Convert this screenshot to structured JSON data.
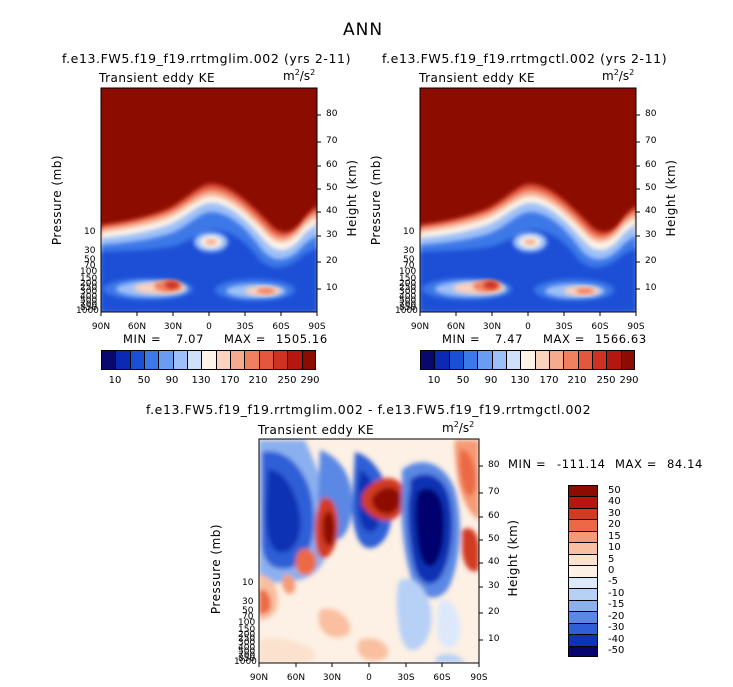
{
  "title": "ANN",
  "chart_data": [
    {
      "type": "heatmap",
      "run_title": "f.e13.FW5.f19_f19.rrtmglim.002 (yrs 2-11)",
      "variable_label": "Transient eddy KE",
      "units_base": "m",
      "units_exp1": "2",
      "units_mid": "/s",
      "units_exp2": "2",
      "x_ticks": [
        "90N",
        "60N",
        "30N",
        "0",
        "30S",
        "60S",
        "90S"
      ],
      "xlim": [
        90,
        -90
      ],
      "ylabel_left": "Pressure (mb)",
      "ylabel_right": "Height (km)",
      "pressure_ticks": [
        "10",
        "30",
        "50",
        "70",
        "100",
        "150",
        "200",
        "250",
        "300",
        "400",
        "500",
        "700",
        "850",
        "1000"
      ],
      "height_ticks": [
        "10",
        "20",
        "30",
        "40",
        "50",
        "60",
        "70",
        "80"
      ],
      "min_label": "MIN =",
      "min_value": "7.07",
      "max_label": "MAX =",
      "max_value": "1505.16",
      "levels": [
        10,
        30,
        50,
        70,
        90,
        110,
        130,
        150,
        170,
        190,
        210,
        230,
        250,
        270,
        290
      ],
      "colorbar_labels": [
        "10",
        "50",
        "90",
        "130",
        "170",
        "210",
        "250",
        "290"
      ]
    },
    {
      "type": "heatmap",
      "run_title": "f.e13.FW5.f19_f19.rrtmgctl.002 (yrs 2-11)",
      "variable_label": "Transient eddy KE",
      "units_base": "m",
      "units_exp1": "2",
      "units_mid": "/s",
      "units_exp2": "2",
      "x_ticks": [
        "90N",
        "60N",
        "30N",
        "0",
        "30S",
        "60S",
        "90S"
      ],
      "xlim": [
        90,
        -90
      ],
      "ylabel_left": "Pressure (mb)",
      "ylabel_right": "Height (km)",
      "pressure_ticks": [
        "10",
        "30",
        "50",
        "70",
        "100",
        "150",
        "200",
        "250",
        "300",
        "400",
        "500",
        "700",
        "850",
        "1000"
      ],
      "height_ticks": [
        "10",
        "20",
        "30",
        "40",
        "50",
        "60",
        "70",
        "80"
      ],
      "min_label": "MIN =",
      "min_value": "7.47",
      "max_label": "MAX =",
      "max_value": "1566.63",
      "levels": [
        10,
        30,
        50,
        70,
        90,
        110,
        130,
        150,
        170,
        190,
        210,
        230,
        250,
        270,
        290
      ],
      "colorbar_labels": [
        "10",
        "50",
        "90",
        "130",
        "170",
        "210",
        "250",
        "290"
      ]
    },
    {
      "type": "heatmap",
      "run_title": "f.e13.FW5.f19_f19.rrtmglim.002 - f.e13.FW5.f19_f19.rrtmgctl.002",
      "variable_label": "Transient eddy KE",
      "units_base": "m",
      "units_exp1": "2",
      "units_mid": "/s",
      "units_exp2": "2",
      "x_ticks": [
        "90N",
        "60N",
        "30N",
        "0",
        "30S",
        "60S",
        "90S"
      ],
      "xlim": [
        90,
        -90
      ],
      "ylabel_left": "Pressure (mb)",
      "ylabel_right": "Height (km)",
      "pressure_ticks": [
        "10",
        "30",
        "50",
        "70",
        "100",
        "150",
        "200",
        "250",
        "300",
        "400",
        "500",
        "700",
        "850",
        "1000"
      ],
      "height_ticks": [
        "10",
        "20",
        "30",
        "40",
        "50",
        "60",
        "70",
        "80"
      ],
      "min_label": "MIN =",
      "min_value": "-111.14",
      "max_label": "MAX =",
      "max_value": "84.14",
      "levels": [
        -50,
        -40,
        -30,
        -20,
        -15,
        -10,
        -5,
        0,
        5,
        10,
        15,
        20,
        30,
        40,
        50
      ],
      "colorbar_labels": [
        "50",
        "40",
        "30",
        "20",
        "15",
        "10",
        "5",
        "0",
        "-5",
        "-10",
        "-15",
        "-20",
        "-30",
        "-40",
        "-50"
      ]
    }
  ],
  "colors": {
    "full_field": [
      "#08086e",
      "#0a2ab4",
      "#1a4fd6",
      "#3c78e8",
      "#6a9cf2",
      "#9ec0f8",
      "#cfe0fb",
      "#fdf3e6",
      "#fad2bd",
      "#f6ab8e",
      "#f08060",
      "#e2573d",
      "#cd3222",
      "#b3170f",
      "#8c0c00"
    ],
    "difference": [
      "#8c0c00",
      "#b3170f",
      "#d23b22",
      "#eb6a45",
      "#f59a74",
      "#f9bfa0",
      "#fbe1ce",
      "#fdf0e4",
      "#dde9fb",
      "#b7d0f6",
      "#8bb0ef",
      "#5a88e4",
      "#2f5ed6",
      "#0f33b4",
      "#06066e"
    ]
  }
}
